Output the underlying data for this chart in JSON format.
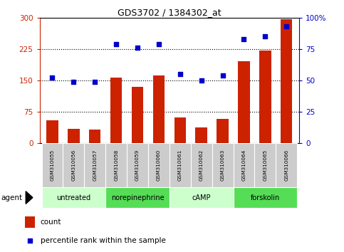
{
  "title": "GDS3702 / 1384302_at",
  "samples": [
    "GSM310055",
    "GSM310056",
    "GSM310057",
    "GSM310058",
    "GSM310059",
    "GSM310060",
    "GSM310061",
    "GSM310062",
    "GSM310063",
    "GSM310064",
    "GSM310065",
    "GSM310066"
  ],
  "counts": [
    55,
    35,
    32,
    157,
    135,
    162,
    62,
    38,
    58,
    195,
    222,
    297
  ],
  "percentiles": [
    52,
    49,
    49,
    79,
    76,
    79,
    55,
    50,
    54,
    83,
    85,
    93
  ],
  "groups": [
    {
      "label": "untreated",
      "start": 0,
      "end": 3,
      "color": "#ccffcc"
    },
    {
      "label": "norepinephrine",
      "start": 3,
      "end": 6,
      "color": "#55dd55"
    },
    {
      "label": "cAMP",
      "start": 6,
      "end": 9,
      "color": "#ccffcc"
    },
    {
      "label": "forskolin",
      "start": 9,
      "end": 12,
      "color": "#55dd55"
    }
  ],
  "bar_color": "#cc2200",
  "dot_color": "#0000cc",
  "left_ylim": [
    0,
    300
  ],
  "right_ylim": [
    0,
    100
  ],
  "left_yticks": [
    0,
    75,
    150,
    225,
    300
  ],
  "right_yticks": [
    0,
    25,
    50,
    75,
    100
  ],
  "right_yticklabels": [
    "0",
    "25",
    "50",
    "75",
    "100%"
  ],
  "left_tick_color": "#cc2200",
  "right_tick_color": "#0000cc",
  "agent_label": "agent",
  "legend_count": "count",
  "legend_percentile": "percentile rank within the sample",
  "sample_bg": "#cccccc",
  "grid_yticks": [
    75,
    150,
    225
  ]
}
